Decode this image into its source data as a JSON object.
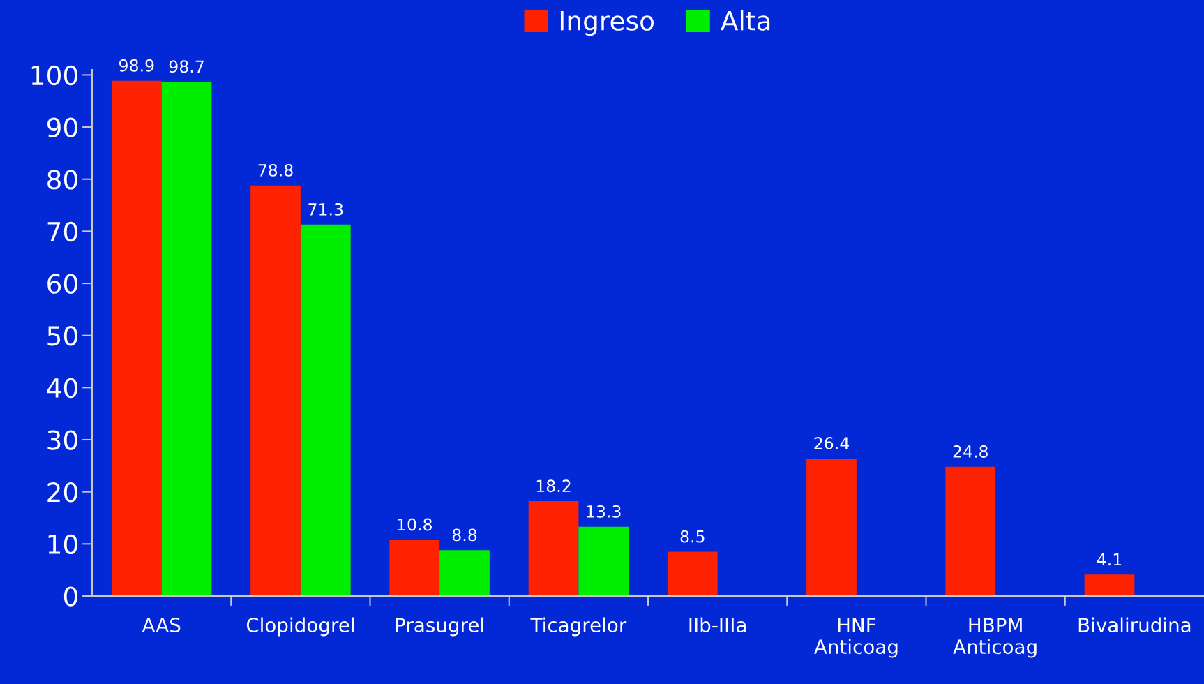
{
  "chart_data": {
    "type": "bar",
    "categories": [
      "AAS",
      "Clopidogrel",
      "Prasugrel",
      "Ticagrelor",
      "IIb-IIIa",
      "HNF\nAnticoag",
      "HBPM\nAnticoag",
      "Bivalirudina"
    ],
    "series": [
      {
        "name": "Ingreso",
        "color": "#ff2200",
        "values": [
          98.9,
          78.8,
          10.8,
          18.2,
          8.5,
          26.4,
          24.8,
          4.1
        ]
      },
      {
        "name": "Alta",
        "color": "#00ee00",
        "values": [
          98.7,
          71.3,
          8.8,
          13.3,
          null,
          null,
          null,
          null
        ]
      }
    ],
    "ylim": [
      0,
      101
    ],
    "yticks": [
      0,
      10,
      20,
      30,
      40,
      50,
      60,
      70,
      80,
      90,
      100
    ],
    "data_labels": true,
    "legend": "top",
    "grid": false
  }
}
